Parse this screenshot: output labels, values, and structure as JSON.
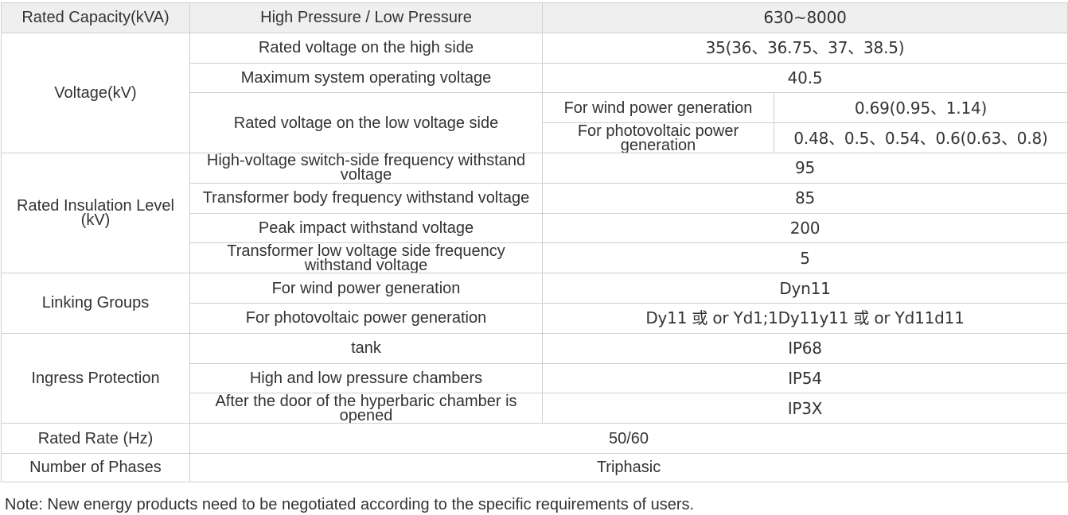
{
  "header": {
    "col1": "Rated Capacity(kVA)",
    "col2": "High Pressure / Low Pressure",
    "col3": "630~8000"
  },
  "voltage": {
    "group": "Voltage(kV)",
    "high_side_label": "Rated voltage on the high side",
    "high_side_value": "35(36、36.75、37、38.5)",
    "max_label": "Maximum system operating voltage",
    "max_value": "40.5",
    "low_side_label": "Rated voltage on the low voltage side",
    "wind_label": "For wind power generation",
    "wind_value": "0.69(0.95、1.14)",
    "pv_label": "For photovoltaic power generation",
    "pv_value": "0.48、0.5、0.54、0.6(0.63、0.8)"
  },
  "insulation": {
    "group": "Rated Insulation Level (kV)",
    "rows": [
      {
        "label": "High-voltage switch-side frequency withstand voltage",
        "value": "95"
      },
      {
        "label": "Transformer body frequency withstand voltage",
        "value": "85"
      },
      {
        "label": "Peak impact withstand voltage",
        "value": "200"
      },
      {
        "label": "Transformer low voltage side frequency withstand voltage",
        "value": "5"
      }
    ]
  },
  "linking": {
    "group": "Linking Groups",
    "rows": [
      {
        "label": "For wind power generation",
        "value": "Dyn11"
      },
      {
        "label": "For photovoltaic power generation",
        "value": "Dy11 或 or Yd1;1Dy11y11 或 or Yd11d11"
      }
    ]
  },
  "ingress": {
    "group": "Ingress Protection",
    "rows": [
      {
        "label": "tank",
        "value": "IP68"
      },
      {
        "label": "High and low pressure chambers",
        "value": "IP54"
      },
      {
        "label": "After the door of the hyperbaric chamber is opened",
        "value": "IP3X"
      }
    ]
  },
  "rate": {
    "label": "Rated Rate (Hz)",
    "value": "50/60"
  },
  "phases": {
    "label": "Number of Phases",
    "value": "Triphasic"
  },
  "note": "Note: New energy products need to be negotiated according to the specific requirements of users."
}
